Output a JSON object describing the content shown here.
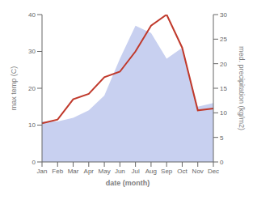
{
  "chart_data": {
    "type": "line",
    "categories": [
      "Jan",
      "Feb",
      "Mar",
      "Apr",
      "May",
      "Jun",
      "Jul",
      "Aug",
      "Sep",
      "Oct",
      "Nov",
      "Dec"
    ],
    "xlabel": "date (month)",
    "ylabel": "max temp (C)",
    "y2label": "med. precipitation (kg/m2)",
    "series": [
      {
        "type": "area",
        "color": "#c8d0f0",
        "values": [
          11.0,
          11.0,
          12.0,
          14.0,
          18.0,
          28.0,
          37.0,
          35.0,
          28.0,
          31.0,
          15.0,
          16.0
        ]
      },
      {
        "type": "line",
        "color": "#c0392b",
        "values": [
          10.5,
          11.5,
          17.0,
          18.5,
          23.0,
          24.5,
          30.0,
          37.0,
          40.0,
          31.0,
          14.0,
          14.5
        ]
      }
    ],
    "ylim": [
      0,
      40
    ],
    "yticks": [
      0,
      10,
      20,
      30,
      40
    ],
    "y2lim": [
      0,
      30
    ],
    "y2ticks": [
      0,
      5,
      10,
      15,
      20,
      25,
      30
    ],
    "grid": false
  }
}
